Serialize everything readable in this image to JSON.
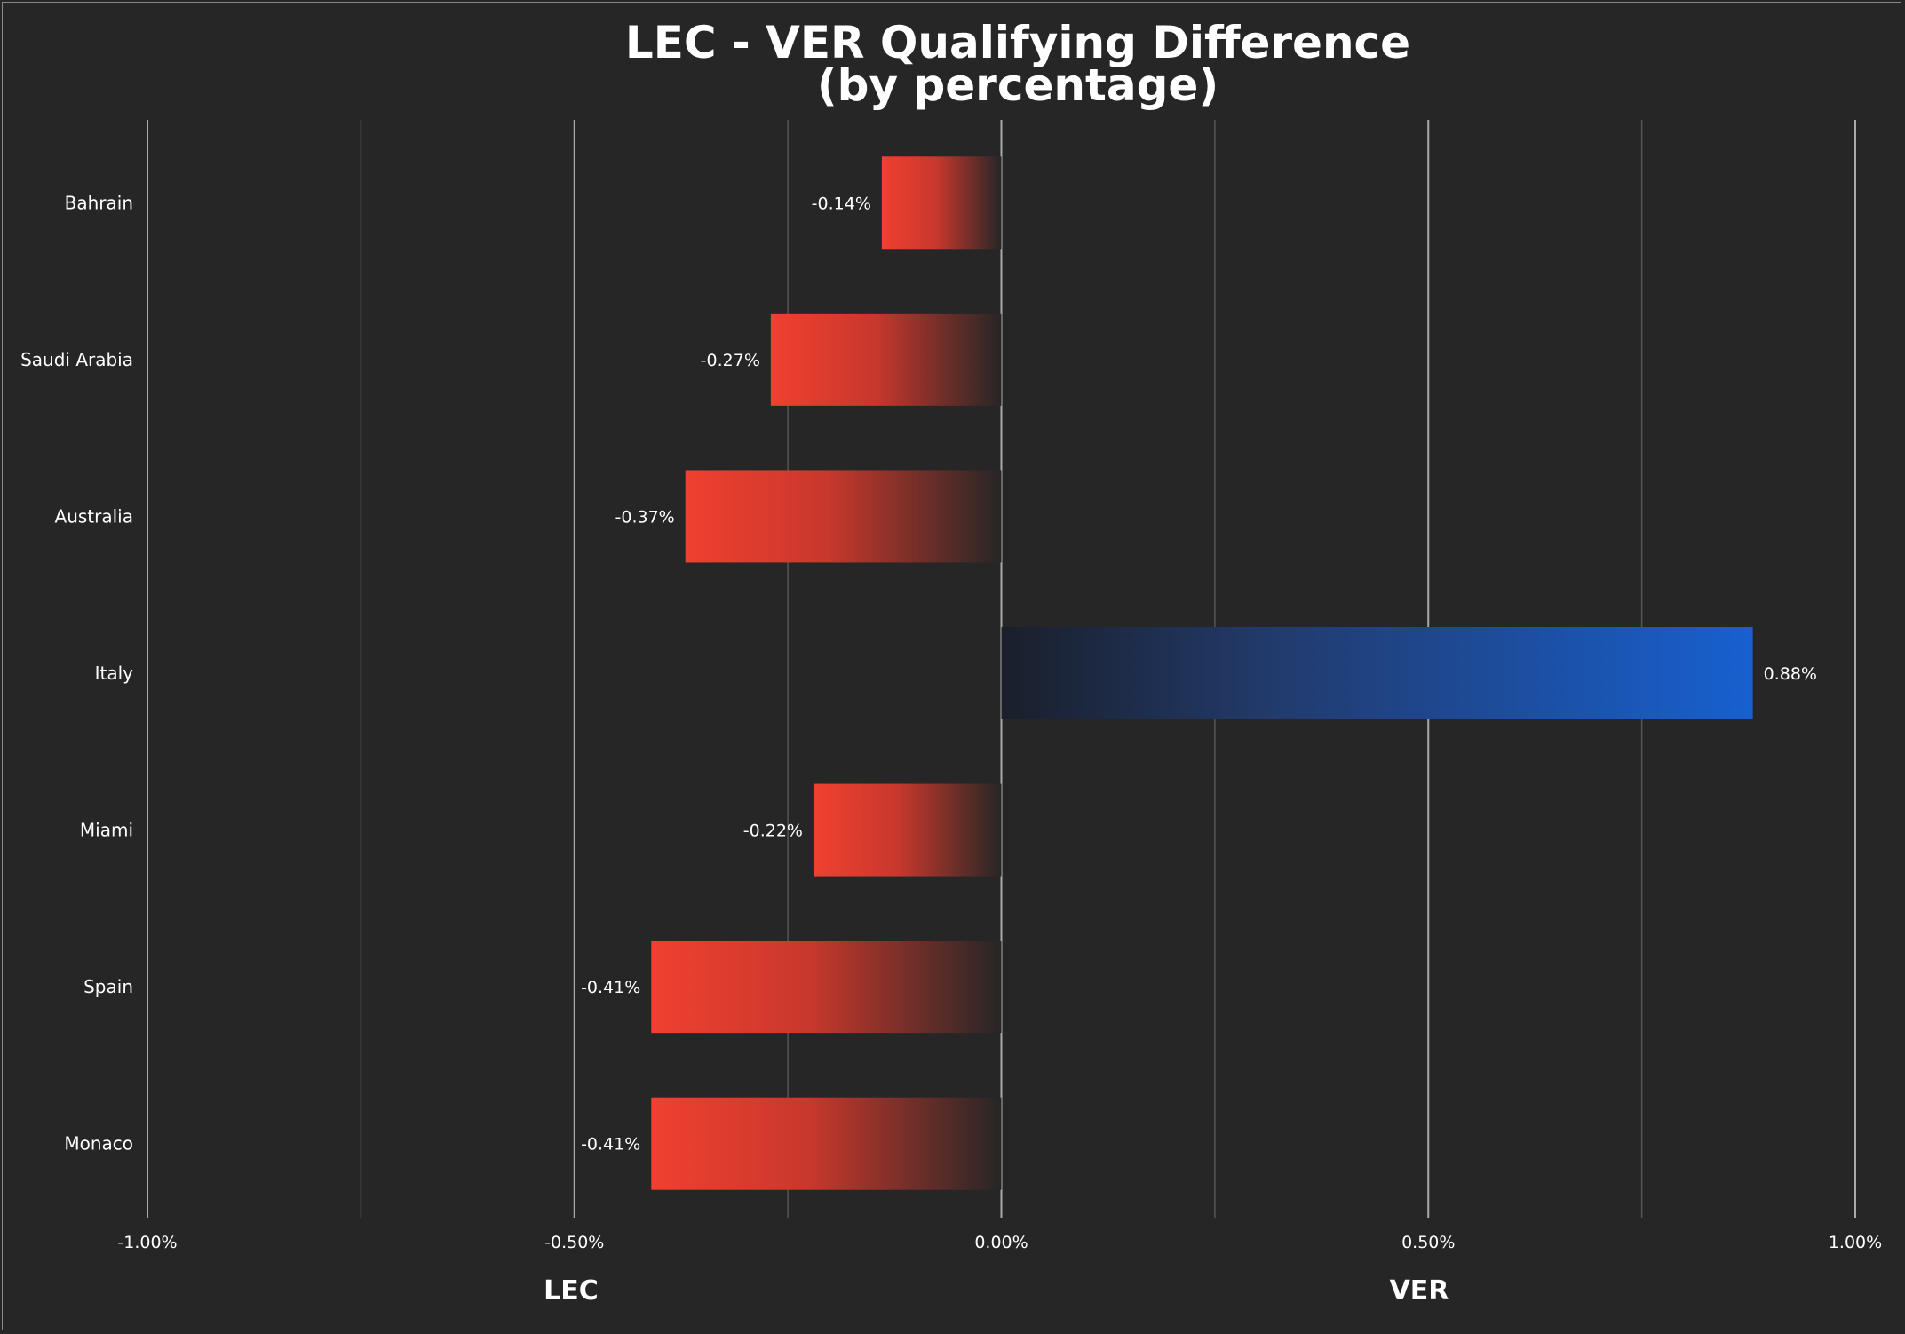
{
  "chart_data": {
    "type": "bar",
    "orientation": "horizontal",
    "title": "LEC - VER Qualifying Difference",
    "subtitle": "(by percentage)",
    "categories": [
      "Bahrain",
      "Saudi Arabia",
      "Australia",
      "Italy",
      "Miami",
      "Spain",
      "Monaco"
    ],
    "values": [
      -0.14,
      -0.27,
      -0.37,
      0.88,
      -0.22,
      -0.41,
      -0.41
    ],
    "value_labels": [
      "-0.14%",
      "-0.27%",
      "-0.37%",
      "0.88%",
      "-0.22%",
      "-0.41%",
      "-0.41%"
    ],
    "xlim": [
      -1.0,
      1.0
    ],
    "x_ticks": [
      -1.0,
      -0.75,
      -0.5,
      -0.25,
      0.0,
      0.25,
      0.5,
      0.75,
      1.0
    ],
    "x_tick_labels": [
      "-1.00%",
      "",
      "-0.50%",
      "",
      "0.00%",
      "",
      "0.50%",
      "",
      "1.00%"
    ],
    "side_labels": {
      "negative": "LEC",
      "positive": "VER"
    },
    "grid": true,
    "colors": {
      "background": "#262626",
      "negative": "#f04030",
      "positive": "#1860d0",
      "grid": "#555555",
      "grid_major": "#aaaaaa",
      "text": "#ffffff"
    }
  }
}
